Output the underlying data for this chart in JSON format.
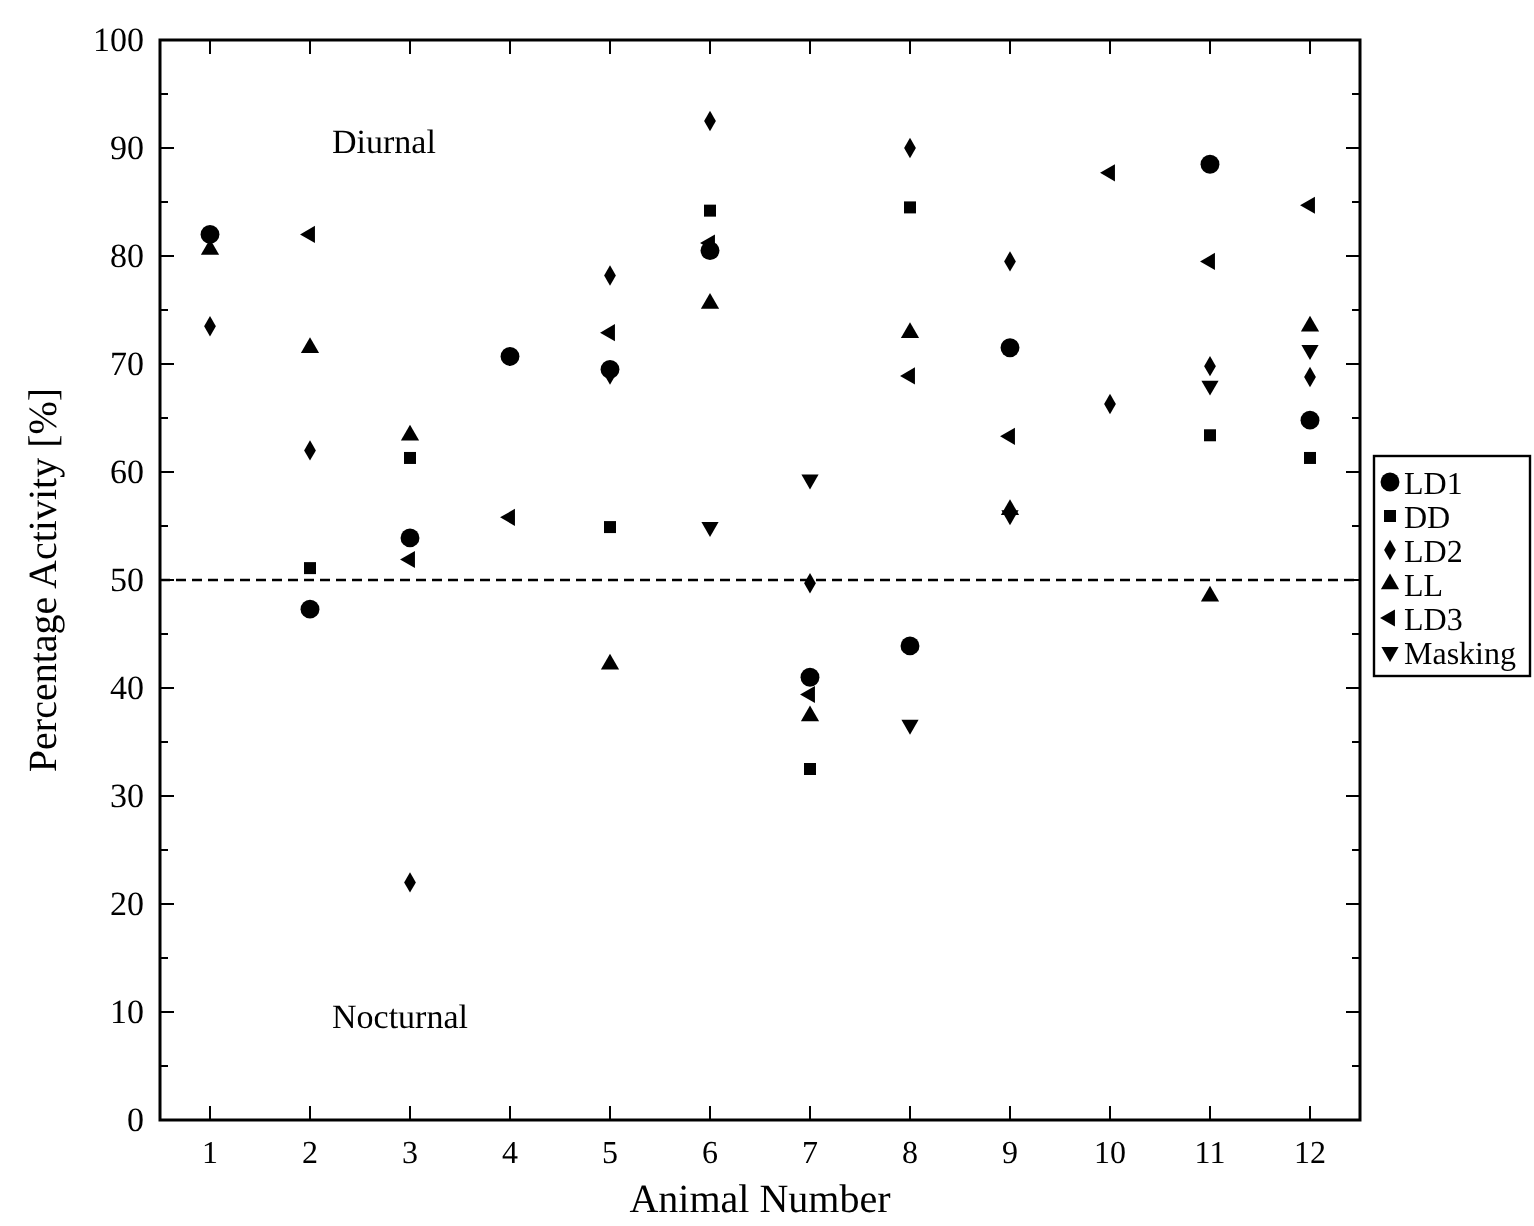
{
  "chart_data": {
    "type": "scatter",
    "xlabel": "Animal Number",
    "ylabel": "Percentage Activity [%]",
    "x": [
      1,
      2,
      3,
      4,
      5,
      6,
      7,
      8,
      9,
      10,
      11,
      12
    ],
    "xlim": [
      0.5,
      12.5
    ],
    "xticks": [
      1,
      2,
      3,
      4,
      5,
      6,
      7,
      8,
      9,
      10,
      11,
      12
    ],
    "ylim": [
      0,
      100
    ],
    "yticks": [
      0,
      {
        "value": 5,
        "label": null
      },
      10,
      {
        "value": 15,
        "label": null
      },
      20,
      {
        "value": 25,
        "label": null
      },
      30,
      {
        "value": 35,
        "label": null
      },
      40,
      {
        "value": 45,
        "label": null
      },
      50,
      {
        "value": 55,
        "label": null
      },
      60,
      {
        "value": 65,
        "label": null
      },
      70,
      {
        "value": 75,
        "label": null
      },
      80,
      {
        "value": 85,
        "label": null
      },
      90,
      {
        "value": 95,
        "label": null
      },
      100
    ],
    "legend": "right",
    "grid": false,
    "ref_lines": [
      {
        "axis": "y",
        "value": 50,
        "line_style": "dashed",
        "color": "#000000"
      }
    ],
    "annotations": [
      "Diurnal",
      "Nocturnal"
    ],
    "series": [
      {
        "name": "LD1",
        "color": "#000000",
        "marker": "circle",
        "values": [
          82,
          47.3,
          53.9,
          70.7,
          69.5,
          80.5,
          41,
          43.9,
          71.5,
          null,
          88.5,
          64.8
        ]
      },
      {
        "name": "DD",
        "color": "#000000",
        "marker": "square",
        "values": [
          null,
          51.1,
          61.3,
          null,
          54.9,
          84.2,
          32.5,
          84.5,
          null,
          null,
          63.4,
          61.3
        ]
      },
      {
        "name": "LD2",
        "color": "#000000",
        "marker": "diamond",
        "values": [
          73.5,
          62,
          22,
          null,
          78.2,
          92.5,
          49.7,
          90,
          79.5,
          66.3,
          69.8,
          68.8
        ]
      },
      {
        "name": "LL",
        "color": "#000000",
        "marker": "triangle",
        "values": [
          80.6,
          71.5,
          63.4,
          null,
          42.2,
          75.6,
          37.4,
          72.9,
          56.5,
          null,
          48.5,
          73.5
        ]
      },
      {
        "name": "LD3",
        "color": "#000000",
        "marker": "triangle-left",
        "values": [
          null,
          82,
          51.9,
          55.8,
          72.9,
          81.2,
          39.4,
          68.9,
          63.3,
          87.7,
          79.5,
          84.7
        ]
      },
      {
        "name": "Masking",
        "color": "#000000",
        "marker": "triangle-down",
        "values": [
          null,
          null,
          null,
          null,
          69,
          54.9,
          59.3,
          36.6,
          56,
          null,
          68,
          71.3
        ]
      }
    ]
  }
}
